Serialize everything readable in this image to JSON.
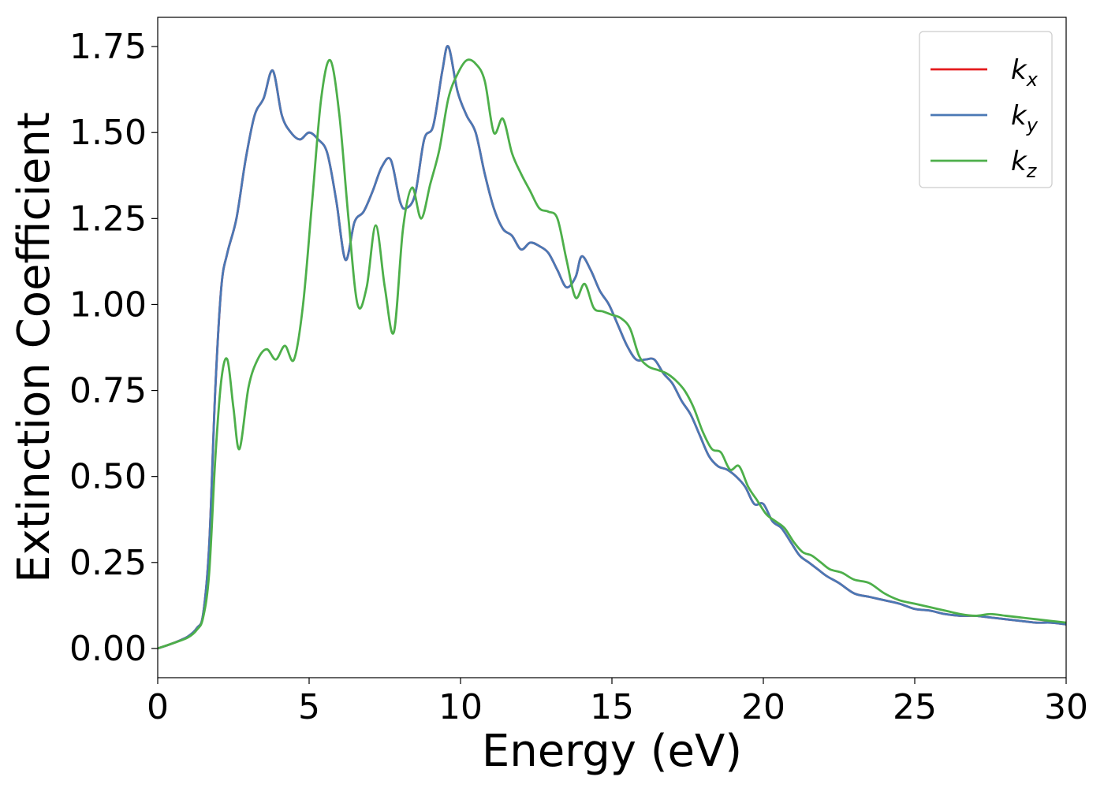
{
  "chart_data": {
    "type": "line",
    "title": "",
    "xlabel": "Energy (eV)",
    "ylabel": "Extinction Coefficient",
    "xlim": [
      0,
      30
    ],
    "ylim": [
      -0.085,
      1.835
    ],
    "xticks": [
      0,
      5,
      10,
      15,
      20,
      25,
      30
    ],
    "xtick_labels": [
      "0",
      "5",
      "10",
      "15",
      "20",
      "25",
      "30"
    ],
    "yticks": [
      0,
      0.25,
      0.5,
      0.75,
      1.0,
      1.25,
      1.5,
      1.75
    ],
    "ytick_labels": [
      "0.00",
      "0.25",
      "0.50",
      "0.75",
      "1.00",
      "1.25",
      "1.50",
      "1.75"
    ],
    "grid": false,
    "legend_position": "top-right",
    "series": [
      {
        "name": "k_x",
        "label_base": "k",
        "label_sub": "x",
        "color": "#e41a1c",
        "x": [
          0,
          0.5,
          1.0,
          1.3,
          1.5,
          1.7,
          1.9,
          2.1,
          2.3,
          2.6,
          2.9,
          3.2,
          3.5,
          3.8,
          4.1,
          4.4,
          4.7,
          5.0,
          5.3,
          5.6,
          5.9,
          6.2,
          6.5,
          6.8,
          7.1,
          7.4,
          7.7,
          8.0,
          8.2,
          8.5,
          8.8,
          9.1,
          9.4,
          9.6,
          9.9,
          10.2,
          10.5,
          10.8,
          11.1,
          11.4,
          11.7,
          12.0,
          12.3,
          12.6,
          12.9,
          13.2,
          13.5,
          13.8,
          14.0,
          14.3,
          14.6,
          14.9,
          15.2,
          15.5,
          15.8,
          16.1,
          16.4,
          16.7,
          17.0,
          17.3,
          17.6,
          17.9,
          18.2,
          18.5,
          18.8,
          19.1,
          19.4,
          19.7,
          20.0,
          20.3,
          20.6,
          20.9,
          21.2,
          21.5,
          21.8,
          22.1,
          22.5,
          23.0,
          23.5,
          24.0,
          24.5,
          25.0,
          25.5,
          26.0,
          26.5,
          27.0,
          27.5,
          28.0,
          28.5,
          29.0,
          29.5,
          30.0
        ],
        "y": [
          0.0,
          0.015,
          0.035,
          0.06,
          0.1,
          0.3,
          0.75,
          1.05,
          1.15,
          1.25,
          1.42,
          1.55,
          1.6,
          1.68,
          1.55,
          1.5,
          1.48,
          1.5,
          1.48,
          1.44,
          1.3,
          1.13,
          1.24,
          1.27,
          1.33,
          1.4,
          1.42,
          1.3,
          1.28,
          1.32,
          1.48,
          1.52,
          1.68,
          1.75,
          1.62,
          1.55,
          1.5,
          1.38,
          1.28,
          1.22,
          1.2,
          1.16,
          1.18,
          1.17,
          1.15,
          1.1,
          1.05,
          1.08,
          1.14,
          1.1,
          1.04,
          1.0,
          0.94,
          0.88,
          0.84,
          0.84,
          0.84,
          0.8,
          0.77,
          0.72,
          0.68,
          0.62,
          0.56,
          0.53,
          0.52,
          0.5,
          0.47,
          0.42,
          0.42,
          0.37,
          0.35,
          0.31,
          0.27,
          0.25,
          0.23,
          0.21,
          0.19,
          0.16,
          0.15,
          0.14,
          0.13,
          0.115,
          0.11,
          0.1,
          0.095,
          0.095,
          0.09,
          0.085,
          0.08,
          0.075,
          0.075,
          0.07
        ]
      },
      {
        "name": "k_y",
        "label_base": "k",
        "label_sub": "y",
        "color": "#4a78b5",
        "x": [
          0,
          0.5,
          1.0,
          1.3,
          1.5,
          1.7,
          1.9,
          2.1,
          2.3,
          2.6,
          2.9,
          3.2,
          3.5,
          3.8,
          4.1,
          4.4,
          4.7,
          5.0,
          5.3,
          5.6,
          5.9,
          6.2,
          6.5,
          6.8,
          7.1,
          7.4,
          7.7,
          8.0,
          8.2,
          8.5,
          8.8,
          9.1,
          9.4,
          9.6,
          9.9,
          10.2,
          10.5,
          10.8,
          11.1,
          11.4,
          11.7,
          12.0,
          12.3,
          12.6,
          12.9,
          13.2,
          13.5,
          13.8,
          14.0,
          14.3,
          14.6,
          14.9,
          15.2,
          15.5,
          15.8,
          16.1,
          16.4,
          16.7,
          17.0,
          17.3,
          17.6,
          17.9,
          18.2,
          18.5,
          18.8,
          19.1,
          19.4,
          19.7,
          20.0,
          20.3,
          20.6,
          20.9,
          21.2,
          21.5,
          21.8,
          22.1,
          22.5,
          23.0,
          23.5,
          24.0,
          24.5,
          25.0,
          25.5,
          26.0,
          26.5,
          27.0,
          27.5,
          28.0,
          28.5,
          29.0,
          29.5,
          30.0
        ],
        "y": [
          0.0,
          0.015,
          0.035,
          0.06,
          0.1,
          0.3,
          0.75,
          1.05,
          1.15,
          1.25,
          1.42,
          1.55,
          1.6,
          1.68,
          1.55,
          1.5,
          1.48,
          1.5,
          1.48,
          1.44,
          1.3,
          1.13,
          1.24,
          1.27,
          1.33,
          1.4,
          1.42,
          1.3,
          1.28,
          1.32,
          1.48,
          1.52,
          1.68,
          1.75,
          1.62,
          1.55,
          1.5,
          1.38,
          1.28,
          1.22,
          1.2,
          1.16,
          1.18,
          1.17,
          1.15,
          1.1,
          1.05,
          1.08,
          1.14,
          1.1,
          1.04,
          1.0,
          0.94,
          0.88,
          0.84,
          0.84,
          0.84,
          0.8,
          0.77,
          0.72,
          0.68,
          0.62,
          0.56,
          0.53,
          0.52,
          0.5,
          0.47,
          0.42,
          0.42,
          0.37,
          0.35,
          0.31,
          0.27,
          0.25,
          0.23,
          0.21,
          0.19,
          0.16,
          0.15,
          0.14,
          0.13,
          0.115,
          0.11,
          0.1,
          0.095,
          0.095,
          0.09,
          0.085,
          0.08,
          0.075,
          0.075,
          0.07
        ]
      },
      {
        "name": "k_z",
        "label_base": "k",
        "label_sub": "z",
        "color": "#4daf4a",
        "x": [
          0,
          0.5,
          1.0,
          1.3,
          1.5,
          1.7,
          1.9,
          2.1,
          2.3,
          2.5,
          2.7,
          3.0,
          3.3,
          3.6,
          3.9,
          4.2,
          4.5,
          4.8,
          5.1,
          5.4,
          5.7,
          6.0,
          6.3,
          6.6,
          6.9,
          7.2,
          7.5,
          7.8,
          8.1,
          8.4,
          8.7,
          9.0,
          9.3,
          9.6,
          9.9,
          10.2,
          10.5,
          10.8,
          11.1,
          11.4,
          11.7,
          12.0,
          12.3,
          12.6,
          12.9,
          13.2,
          13.5,
          13.8,
          14.1,
          14.4,
          14.7,
          15.0,
          15.3,
          15.6,
          15.9,
          16.2,
          16.5,
          16.8,
          17.1,
          17.4,
          17.7,
          18.0,
          18.3,
          18.6,
          18.9,
          19.2,
          19.5,
          19.8,
          20.1,
          20.4,
          20.7,
          21.0,
          21.3,
          21.6,
          21.9,
          22.2,
          22.6,
          23.0,
          23.5,
          24.0,
          24.5,
          25.0,
          25.5,
          26.0,
          26.5,
          27.0,
          27.5,
          28.0,
          28.5,
          29.0,
          29.5,
          30.0
        ],
        "y": [
          0.0,
          0.015,
          0.032,
          0.055,
          0.09,
          0.22,
          0.55,
          0.78,
          0.84,
          0.7,
          0.58,
          0.76,
          0.84,
          0.87,
          0.84,
          0.88,
          0.84,
          1.0,
          1.3,
          1.6,
          1.71,
          1.55,
          1.25,
          1.0,
          1.05,
          1.23,
          1.05,
          0.92,
          1.22,
          1.34,
          1.25,
          1.35,
          1.45,
          1.6,
          1.67,
          1.71,
          1.7,
          1.65,
          1.5,
          1.54,
          1.44,
          1.38,
          1.33,
          1.28,
          1.27,
          1.25,
          1.13,
          1.02,
          1.06,
          0.99,
          0.98,
          0.97,
          0.96,
          0.93,
          0.85,
          0.82,
          0.81,
          0.8,
          0.78,
          0.75,
          0.7,
          0.63,
          0.58,
          0.57,
          0.52,
          0.53,
          0.47,
          0.43,
          0.39,
          0.37,
          0.35,
          0.31,
          0.28,
          0.27,
          0.25,
          0.23,
          0.22,
          0.2,
          0.19,
          0.16,
          0.14,
          0.13,
          0.12,
          0.11,
          0.1,
          0.095,
          0.1,
          0.095,
          0.09,
          0.085,
          0.08,
          0.075
        ]
      }
    ]
  }
}
